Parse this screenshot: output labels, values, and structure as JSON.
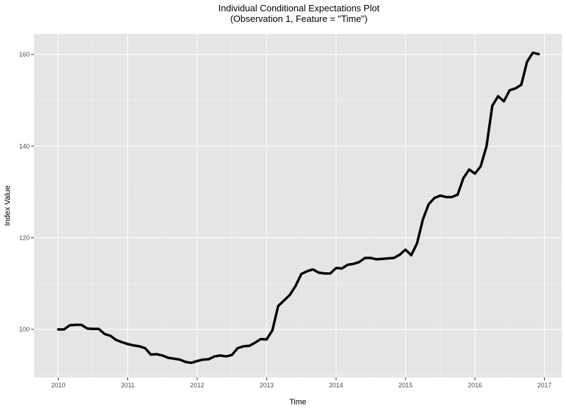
{
  "chart_data": {
    "type": "line",
    "title": "Individual Conditional Expectations Plot",
    "subtitle": "(Observation 1, Feature = \"Time\")",
    "xlabel": "Time",
    "ylabel": "Index Value",
    "x_ticks": [
      "2010",
      "2011",
      "2012",
      "2013",
      "2014",
      "2015",
      "2016",
      "2017"
    ],
    "y_ticks": [
      "100",
      "120",
      "140",
      "160"
    ],
    "xlim": [
      2009.65,
      2017.25
    ],
    "ylim": [
      89.5,
      164.5
    ],
    "grid": true,
    "colors": {
      "panel": "#e5e5e5",
      "grid": "#ffffff",
      "line": "#000000"
    },
    "series": [
      {
        "x": [
          2010.0,
          2010.083,
          2010.167,
          2010.25,
          2010.333,
          2010.417,
          2010.5,
          2010.583,
          2010.667,
          2010.75,
          2010.833,
          2010.917,
          2011.0,
          2011.083,
          2011.167,
          2011.25,
          2011.333,
          2011.417,
          2011.5,
          2011.583,
          2011.667,
          2011.75,
          2011.833,
          2011.917,
          2012.0,
          2012.083,
          2012.167,
          2012.25,
          2012.333,
          2012.417,
          2012.5,
          2012.583,
          2012.667,
          2012.75,
          2012.833,
          2012.917,
          2013.0,
          2013.083,
          2013.167,
          2013.25,
          2013.333,
          2013.417,
          2013.5,
          2013.583,
          2013.667,
          2013.75,
          2013.833,
          2013.917,
          2014.0,
          2014.083,
          2014.167,
          2014.25,
          2014.333,
          2014.417,
          2014.5,
          2014.583,
          2014.667,
          2014.75,
          2014.833,
          2014.917,
          2015.0,
          2015.083,
          2015.167,
          2015.25,
          2015.333,
          2015.417,
          2015.5,
          2015.583,
          2015.667,
          2015.75,
          2015.833,
          2015.917,
          2016.0,
          2016.083,
          2016.167,
          2016.25,
          2016.333,
          2016.417,
          2016.5,
          2016.583,
          2016.667,
          2016.75,
          2016.833,
          2016.917
        ],
        "y": [
          100.0,
          100.0,
          100.9,
          101.0,
          101.0,
          100.2,
          100.1,
          100.1,
          99.0,
          98.6,
          97.7,
          97.2,
          96.8,
          96.5,
          96.3,
          95.9,
          94.5,
          94.6,
          94.3,
          93.8,
          93.6,
          93.4,
          92.9,
          92.7,
          93.1,
          93.4,
          93.5,
          94.1,
          94.3,
          94.1,
          94.4,
          95.9,
          96.3,
          96.4,
          97.1,
          97.9,
          97.8,
          99.8,
          105.1,
          106.3,
          107.5,
          109.5,
          112.1,
          112.7,
          113.1,
          112.4,
          112.2,
          112.2,
          113.4,
          113.3,
          114.1,
          114.3,
          114.7,
          115.6,
          115.6,
          115.3,
          115.4,
          115.5,
          115.6,
          116.3,
          117.4,
          116.2,
          118.8,
          124.0,
          127.3,
          128.7,
          129.2,
          128.9,
          128.9,
          129.4,
          133.0,
          134.9,
          134.0,
          135.6,
          140.0,
          148.8,
          150.9,
          149.8,
          152.2,
          152.6,
          153.4,
          158.4,
          160.4,
          160.1
        ]
      }
    ]
  }
}
